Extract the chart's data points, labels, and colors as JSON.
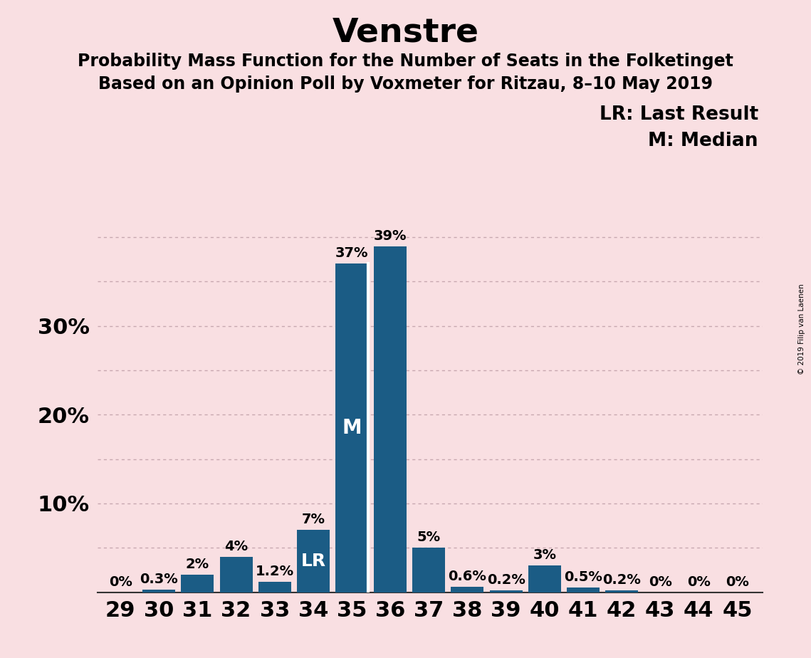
{
  "title": "Venstre",
  "subtitle1": "Probability Mass Function for the Number of Seats in the Folketinget",
  "subtitle2": "Based on an Opinion Poll by Voxmeter for Ritzau, 8–10 May 2019",
  "copyright": "© 2019 Filip van Laenen",
  "seats": [
    29,
    30,
    31,
    32,
    33,
    34,
    35,
    36,
    37,
    38,
    39,
    40,
    41,
    42,
    43,
    44,
    45
  ],
  "values": [
    0.0,
    0.3,
    2.0,
    4.0,
    1.2,
    7.0,
    37.0,
    39.0,
    5.0,
    0.6,
    0.2,
    3.0,
    0.5,
    0.2,
    0.0,
    0.0,
    0.0
  ],
  "labels": [
    "0%",
    "0.3%",
    "2%",
    "4%",
    "1.2%",
    "7%",
    "37%",
    "39%",
    "5%",
    "0.6%",
    "0.2%",
    "3%",
    "0.5%",
    "0.2%",
    "0%",
    "0%",
    "0%"
  ],
  "inside_labels": {
    "5": "LR",
    "6": "M"
  },
  "bar_color": "#1b5c85",
  "background_color": "#f9dfe2",
  "median_seat_idx": 6,
  "last_result_seat_idx": 5,
  "legend_lr": "LR: Last Result",
  "legend_m": "M: Median",
  "title_fontsize": 34,
  "subtitle_fontsize": 17,
  "bar_label_fontsize": 14,
  "axis_tick_fontsize": 22,
  "legend_fontsize": 19,
  "ylim_max": 43,
  "grid_color": "#c8a8b0",
  "grid_levels": [
    5,
    10,
    15,
    20,
    25,
    30,
    35,
    40
  ]
}
